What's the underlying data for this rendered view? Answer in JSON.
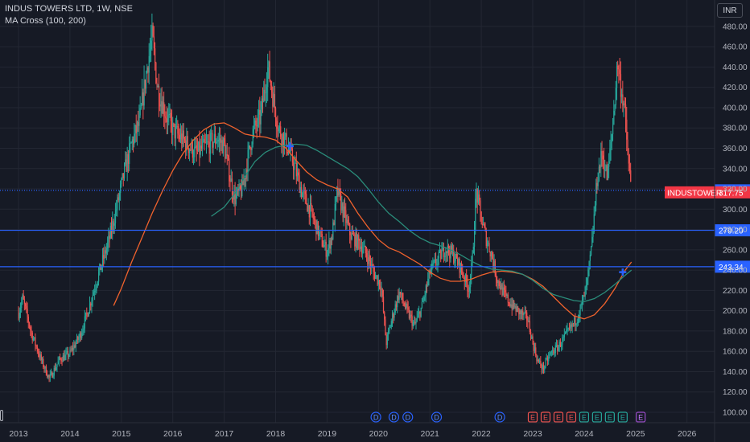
{
  "header": {
    "symbol_line": "INDUS TOWERS LTD, 1W, NSE",
    "indicator_line": "MA Cross (100, 200)",
    "currency_label": "INR"
  },
  "colors": {
    "background": "#161a25",
    "grid": "#232733",
    "up": "#26a69a",
    "down": "#ef5350",
    "ma100": "#f0622d",
    "ma200": "#2a8c7a",
    "hline": "#2962ff",
    "cross": "#2962ff",
    "last_price_bg": "#f23645",
    "axis_text": "#b2b5be"
  },
  "chart_data": {
    "type": "candlestick",
    "title": "INDUS TOWERS LTD, 1W, NSE",
    "subtitle": "MA Cross (100, 200)",
    "xlabel": "",
    "ylabel": "INR",
    "x_range": [
      2012.9,
      2026.7
    ],
    "y_range": [
      93,
      495
    ],
    "x_ticks": [
      "2013",
      "2014",
      "2015",
      "2016",
      "2017",
      "2018",
      "2019",
      "2020",
      "2021",
      "2022",
      "2023",
      "2024",
      "2025",
      "2026"
    ],
    "y_ticks": [
      100,
      120,
      140,
      160,
      180,
      200,
      220,
      240,
      260,
      280,
      300,
      320,
      340,
      360,
      380,
      400,
      420,
      440,
      460,
      480
    ],
    "grid": true,
    "price_path": [
      [
        2013.0,
        198
      ],
      [
        2013.08,
        212
      ],
      [
        2013.25,
        178
      ],
      [
        2013.45,
        150
      ],
      [
        2013.6,
        133
      ],
      [
        2013.8,
        152
      ],
      [
        2014.0,
        158
      ],
      [
        2014.2,
        176
      ],
      [
        2014.35,
        200
      ],
      [
        2014.55,
        235
      ],
      [
        2014.75,
        268
      ],
      [
        2014.9,
        300
      ],
      [
        2015.05,
        335
      ],
      [
        2015.2,
        365
      ],
      [
        2015.35,
        385
      ],
      [
        2015.5,
        440
      ],
      [
        2015.6,
        470
      ],
      [
        2015.7,
        420
      ],
      [
        2015.85,
        395
      ],
      [
        2016.0,
        378
      ],
      [
        2016.2,
        368
      ],
      [
        2016.45,
        355
      ],
      [
        2016.65,
        362
      ],
      [
        2016.85,
        370
      ],
      [
        2017.0,
        362
      ],
      [
        2017.1,
        335
      ],
      [
        2017.2,
        310
      ],
      [
        2017.35,
        320
      ],
      [
        2017.55,
        375
      ],
      [
        2017.7,
        390
      ],
      [
        2017.85,
        440
      ],
      [
        2017.95,
        410
      ],
      [
        2018.05,
        380
      ],
      [
        2018.2,
        365
      ],
      [
        2018.35,
        345
      ],
      [
        2018.5,
        318
      ],
      [
        2018.7,
        295
      ],
      [
        2018.9,
        268
      ],
      [
        2019.0,
        258
      ],
      [
        2019.1,
        275
      ],
      [
        2019.2,
        318
      ],
      [
        2019.3,
        300
      ],
      [
        2019.45,
        275
      ],
      [
        2019.65,
        265
      ],
      [
        2019.8,
        252
      ],
      [
        2019.9,
        238
      ],
      [
        2020.05,
        225
      ],
      [
        2020.15,
        168
      ],
      [
        2020.25,
        190
      ],
      [
        2020.4,
        218
      ],
      [
        2020.55,
        200
      ],
      [
        2020.7,
        185
      ],
      [
        2020.85,
        205
      ],
      [
        2021.0,
        238
      ],
      [
        2021.15,
        250
      ],
      [
        2021.3,
        262
      ],
      [
        2021.45,
        255
      ],
      [
        2021.6,
        242
      ],
      [
        2021.75,
        222
      ],
      [
        2021.82,
        245
      ],
      [
        2021.9,
        318
      ],
      [
        2022.0,
        290
      ],
      [
        2022.1,
        270
      ],
      [
        2022.2,
        255
      ],
      [
        2022.3,
        232
      ],
      [
        2022.45,
        215
      ],
      [
        2022.6,
        205
      ],
      [
        2022.75,
        198
      ],
      [
        2022.9,
        192
      ],
      [
        2023.0,
        168
      ],
      [
        2023.1,
        150
      ],
      [
        2023.2,
        143
      ],
      [
        2023.35,
        158
      ],
      [
        2023.5,
        165
      ],
      [
        2023.7,
        180
      ],
      [
        2023.85,
        192
      ],
      [
        2023.95,
        205
      ],
      [
        2024.05,
        225
      ],
      [
        2024.15,
        265
      ],
      [
        2024.25,
        330
      ],
      [
        2024.35,
        355
      ],
      [
        2024.45,
        330
      ],
      [
        2024.55,
        380
      ],
      [
        2024.65,
        445
      ],
      [
        2024.7,
        425
      ],
      [
        2024.78,
        400
      ],
      [
        2024.86,
        345
      ],
      [
        2024.92,
        318
      ]
    ],
    "series": [
      {
        "name": "",
        "kind": "ma100",
        "points": [
          [
            2014.85,
            205
          ],
          [
            2015.0,
            222
          ],
          [
            2015.2,
            248
          ],
          [
            2015.4,
            272
          ],
          [
            2015.6,
            296
          ],
          [
            2015.8,
            318
          ],
          [
            2016.0,
            338
          ],
          [
            2016.2,
            355
          ],
          [
            2016.4,
            368
          ],
          [
            2016.6,
            378
          ],
          [
            2016.8,
            384
          ],
          [
            2017.0,
            385
          ],
          [
            2017.2,
            380
          ],
          [
            2017.4,
            374
          ],
          [
            2017.6,
            372
          ],
          [
            2017.8,
            371
          ],
          [
            2018.0,
            368
          ],
          [
            2018.2,
            360
          ],
          [
            2018.4,
            348
          ],
          [
            2018.6,
            337
          ],
          [
            2018.8,
            329
          ],
          [
            2019.0,
            324
          ],
          [
            2019.2,
            320
          ],
          [
            2019.4,
            312
          ],
          [
            2019.6,
            296
          ],
          [
            2019.8,
            282
          ],
          [
            2020.0,
            270
          ],
          [
            2020.2,
            262
          ],
          [
            2020.4,
            258
          ],
          [
            2020.6,
            252
          ],
          [
            2020.8,
            246
          ],
          [
            2021.0,
            238
          ],
          [
            2021.2,
            232
          ],
          [
            2021.4,
            229
          ],
          [
            2021.6,
            229
          ],
          [
            2021.8,
            231
          ],
          [
            2022.0,
            235
          ],
          [
            2022.2,
            238
          ],
          [
            2022.4,
            239
          ],
          [
            2022.6,
            238
          ],
          [
            2022.8,
            236
          ],
          [
            2023.0,
            231
          ],
          [
            2023.2,
            224
          ],
          [
            2023.4,
            214
          ],
          [
            2023.6,
            204
          ],
          [
            2023.8,
            195
          ],
          [
            2024.0,
            192
          ],
          [
            2024.2,
            196
          ],
          [
            2024.4,
            207
          ],
          [
            2024.6,
            222
          ],
          [
            2024.8,
            240
          ],
          [
            2024.92,
            248
          ]
        ]
      },
      {
        "name": "",
        "kind": "ma200",
        "points": [
          [
            2016.75,
            293
          ],
          [
            2017.0,
            302
          ],
          [
            2017.2,
            315
          ],
          [
            2017.4,
            332
          ],
          [
            2017.6,
            347
          ],
          [
            2017.8,
            356
          ],
          [
            2018.0,
            361
          ],
          [
            2018.2,
            363
          ],
          [
            2018.4,
            364
          ],
          [
            2018.6,
            363
          ],
          [
            2018.8,
            358
          ],
          [
            2019.0,
            352
          ],
          [
            2019.2,
            346
          ],
          [
            2019.4,
            340
          ],
          [
            2019.6,
            332
          ],
          [
            2019.8,
            320
          ],
          [
            2020.0,
            307
          ],
          [
            2020.2,
            296
          ],
          [
            2020.4,
            288
          ],
          [
            2020.6,
            279
          ],
          [
            2020.8,
            272
          ],
          [
            2021.0,
            267
          ],
          [
            2021.2,
            264
          ],
          [
            2021.4,
            260
          ],
          [
            2021.6,
            255
          ],
          [
            2021.8,
            249
          ],
          [
            2022.0,
            244
          ],
          [
            2022.2,
            241
          ],
          [
            2022.4,
            240
          ],
          [
            2022.6,
            239
          ],
          [
            2022.8,
            236
          ],
          [
            2023.0,
            230
          ],
          [
            2023.2,
            222
          ],
          [
            2023.4,
            216
          ],
          [
            2023.6,
            213
          ],
          [
            2023.8,
            210
          ],
          [
            2024.0,
            209
          ],
          [
            2024.2,
            212
          ],
          [
            2024.4,
            218
          ],
          [
            2024.6,
            226
          ],
          [
            2024.8,
            235
          ],
          [
            2024.92,
            240
          ]
        ]
      }
    ],
    "crosses": [
      {
        "x": 2018.28,
        "y": 362
      },
      {
        "x": 2024.75,
        "y": 238
      }
    ],
    "horizontal_lines": [
      {
        "value": 318.55,
        "label": "318.55",
        "style": "dotted"
      },
      {
        "value": 279.2,
        "label": "279.20",
        "style": "solid"
      },
      {
        "value": 243.34,
        "label": "243.34",
        "style": "solid"
      }
    ],
    "last_price": {
      "label": "INDUSTOWER",
      "value": "317.75",
      "y": 317.75
    },
    "event_markers": [
      {
        "x": 2019.95,
        "letter": "D",
        "type": "dividend"
      },
      {
        "x": 2020.3,
        "letter": "D",
        "type": "dividend"
      },
      {
        "x": 2020.57,
        "letter": "D",
        "type": "dividend"
      },
      {
        "x": 2021.13,
        "letter": "D",
        "type": "dividend"
      },
      {
        "x": 2022.36,
        "letter": "D",
        "type": "dividend"
      },
      {
        "x": 2023.0,
        "letter": "E",
        "type": "earnings"
      },
      {
        "x": 2023.25,
        "letter": "E",
        "type": "earnings"
      },
      {
        "x": 2023.5,
        "letter": "E",
        "type": "earnings"
      },
      {
        "x": 2023.75,
        "letter": "E",
        "type": "earnings"
      },
      {
        "x": 2024.0,
        "letter": "E",
        "type": "earnings-beat"
      },
      {
        "x": 2024.25,
        "letter": "E",
        "type": "earnings-beat"
      },
      {
        "x": 2024.5,
        "letter": "E",
        "type": "earnings-beat"
      },
      {
        "x": 2024.75,
        "letter": "E",
        "type": "earnings-beat"
      },
      {
        "x": 2025.1,
        "letter": "E",
        "type": "earnings-upcoming"
      }
    ]
  }
}
